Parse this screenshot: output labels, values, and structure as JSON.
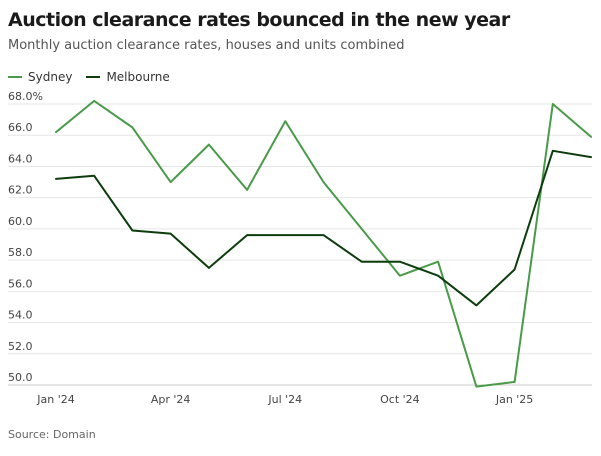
{
  "title": "Auction clearance rates bounced in the new year",
  "subtitle": "Monthly auction clearance rates, houses and units combined",
  "source": "Source: Domain",
  "colors": {
    "sydney": "#4a9a4a",
    "melbourne": "#0d3d0d",
    "grid": "#e6e6e6",
    "text": "#444444"
  },
  "chart_data": {
    "type": "line",
    "title": "Auction clearance rates bounced in the new year",
    "subtitle": "Monthly auction clearance rates, houses and units combined",
    "x": [
      "2024-01",
      "2024-02",
      "2024-03",
      "2024-04",
      "2024-05",
      "2024-06",
      "2024-07",
      "2024-08",
      "2024-09",
      "2024-10",
      "2024-11",
      "2024-12",
      "2025-01",
      "2025-02",
      "2025-03"
    ],
    "x_tick_labels": [
      {
        "x": "2024-01",
        "label": "Jan '24"
      },
      {
        "x": "2024-04",
        "label": "Apr '24"
      },
      {
        "x": "2024-07",
        "label": "Jul '24"
      },
      {
        "x": "2024-10",
        "label": "Oct '24"
      },
      {
        "x": "2025-01",
        "label": "Jan '25"
      }
    ],
    "y_ticks": [
      50,
      52,
      54,
      56,
      58,
      60,
      62,
      64,
      66,
      68
    ],
    "y_tick_labels": [
      "50.0",
      "52.0",
      "54.0",
      "56.0",
      "58.0",
      "60.0",
      "62.0",
      "64.0",
      "66.0",
      "68.0%"
    ],
    "ylim": [
      50,
      68
    ],
    "grid": true,
    "legend_position": "top-left",
    "series": [
      {
        "name": "Sydney",
        "color": "#4a9a4a",
        "values": [
          66.2,
          68.2,
          66.5,
          63.0,
          65.4,
          62.5,
          66.9,
          63.0,
          60.0,
          57.0,
          57.9,
          49.9,
          50.2,
          68.0,
          65.9
        ]
      },
      {
        "name": "Melbourne",
        "color": "#0d3d0d",
        "values": [
          63.2,
          63.4,
          59.9,
          59.7,
          57.5,
          59.6,
          59.6,
          59.6,
          57.9,
          57.9,
          57.0,
          55.1,
          57.4,
          65.0,
          64.6
        ]
      }
    ]
  }
}
